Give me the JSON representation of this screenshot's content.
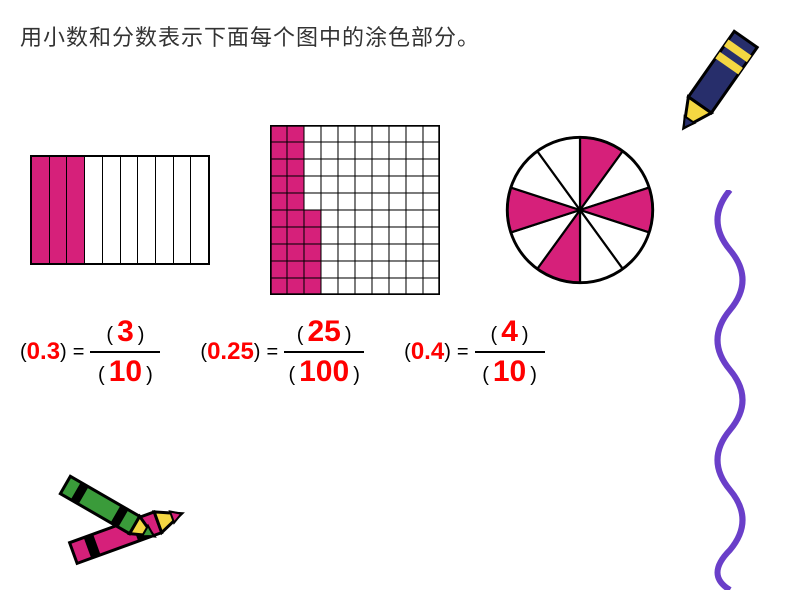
{
  "title": "用小数和分数表示下面每个图中的涂色部分。",
  "colors": {
    "shaded": "#d6207a",
    "unshaded": "#ffffff",
    "stroke": "#000000",
    "answer": "#ff0000",
    "text": "#333333",
    "crayon_body": "#272e6b",
    "crayon_tip": "#f4d742",
    "wavy": "#6a3fc9",
    "crayon2": "#d6207a",
    "crayon3": "#3a9b3a"
  },
  "figures": {
    "strips": {
      "type": "bar",
      "total": 10,
      "shaded": 3
    },
    "grid": {
      "type": "grid",
      "rows": 10,
      "cols": 10,
      "shaded_cells": 25,
      "full_shaded_cols": 2,
      "partial_col_index": 2,
      "partial_col_shaded_rows": 5
    },
    "pie": {
      "type": "pie",
      "sectors": 10,
      "shaded_indices": [
        0,
        2,
        5,
        7
      ],
      "shaded_count": 4
    }
  },
  "equations": [
    {
      "decimal": "0.3",
      "numerator": "3",
      "denominator": "10",
      "line_width": 70
    },
    {
      "decimal": "0.25",
      "numerator": "25",
      "denominator": "100",
      "line_width": 80
    },
    {
      "decimal": "0.4",
      "numerator": "4",
      "denominator": "10",
      "line_width": 70
    }
  ]
}
